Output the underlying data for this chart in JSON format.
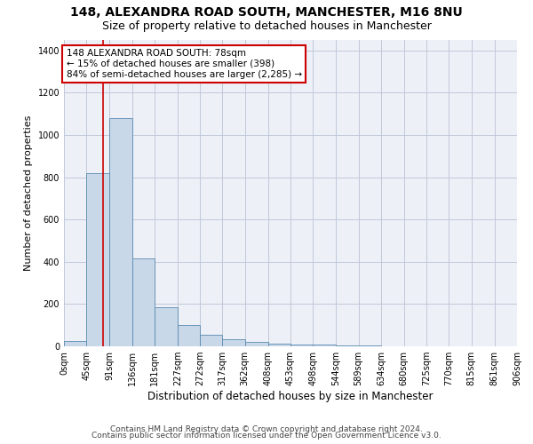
{
  "title1": "148, ALEXANDRA ROAD SOUTH, MANCHESTER, M16 8NU",
  "title2": "Size of property relative to detached houses in Manchester",
  "xlabel": "Distribution of detached houses by size in Manchester",
  "ylabel": "Number of detached properties",
  "bin_edges": [
    0,
    45,
    91,
    136,
    181,
    227,
    272,
    317,
    362,
    408,
    453,
    498,
    544,
    589,
    634,
    680,
    725,
    770,
    815,
    861,
    906
  ],
  "bar_heights": [
    25,
    820,
    1080,
    415,
    185,
    100,
    55,
    32,
    20,
    12,
    8,
    10,
    5,
    3,
    2,
    2,
    1,
    1,
    1,
    1
  ],
  "bar_color": "#c8d8e8",
  "bar_edge_color": "#5a8ab0",
  "bar_edge_width": 0.6,
  "property_size": 78,
  "red_line_color": "#cc0000",
  "annotation_line1": "148 ALEXANDRA ROAD SOUTH: 78sqm",
  "annotation_line2": "← 15% of detached houses are smaller (398)",
  "annotation_line3": "84% of semi-detached houses are larger (2,285) →",
  "annotation_box_color": "white",
  "annotation_border_color": "#cc0000",
  "ylim": [
    0,
    1450
  ],
  "xlim": [
    0,
    906
  ],
  "grid_color": "#c0c8d8",
  "bg_color": "#eef0f8",
  "footer1": "Contains HM Land Registry data © Crown copyright and database right 2024.",
  "footer2": "Contains public sector information licensed under the Open Government Licence v3.0.",
  "title1_fontsize": 10,
  "title2_fontsize": 9,
  "xlabel_fontsize": 8.5,
  "ylabel_fontsize": 8,
  "tick_fontsize": 7,
  "annotation_fontsize": 7.5,
  "footer_fontsize": 6.5
}
